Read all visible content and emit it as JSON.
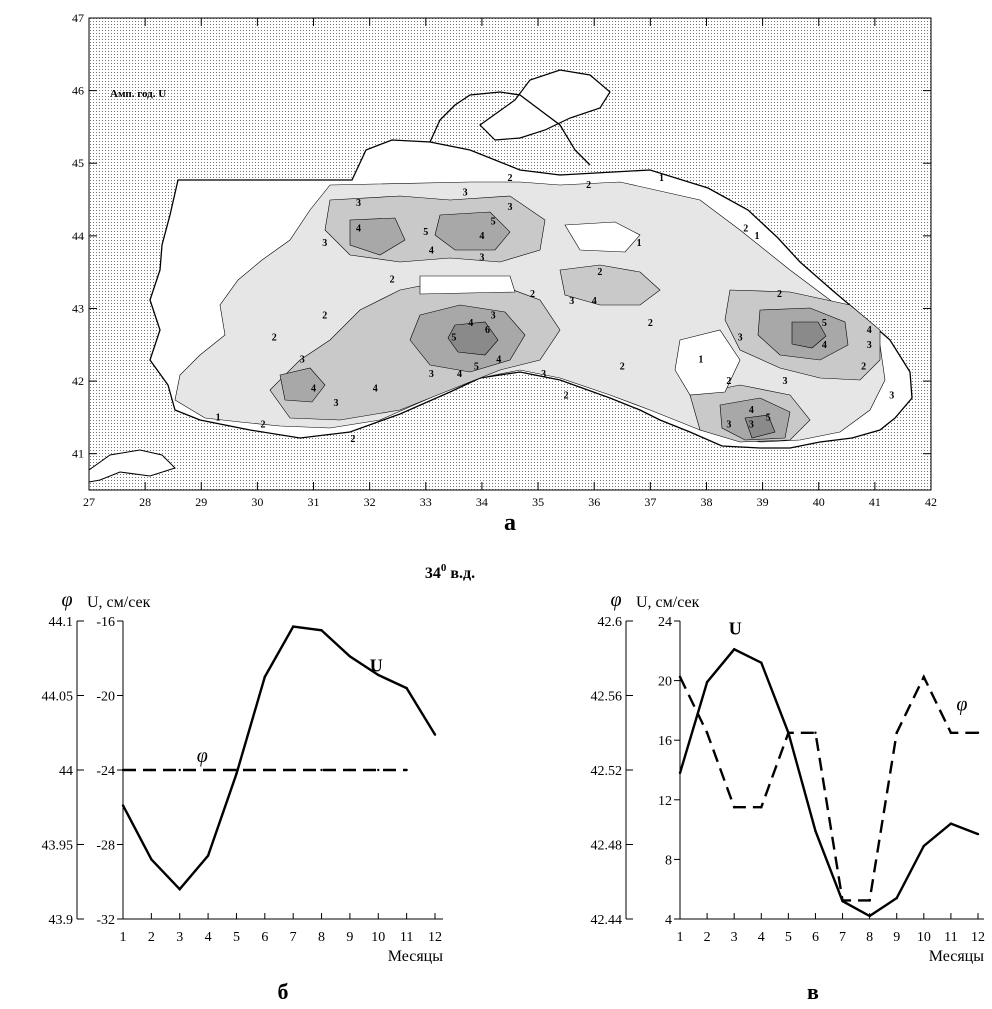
{
  "chart_data": [
    {
      "type": "heatmap",
      "panel_label": "а",
      "map_label": "Амп. год. U",
      "x_ticks": [
        27,
        28,
        29,
        30,
        31,
        32,
        33,
        34,
        35,
        36,
        37,
        38,
        39,
        40,
        41,
        42
      ],
      "y_ticks": [
        41,
        42,
        43,
        44,
        45,
        46,
        47
      ],
      "xlim": [
        27,
        42
      ],
      "ylim": [
        40.5,
        47
      ],
      "contour_labels": [
        {
          "text": "1",
          "lon": 29.3,
          "lat": 41.5
        },
        {
          "text": "2",
          "lon": 30.1,
          "lat": 41.4
        },
        {
          "text": "2",
          "lon": 30.3,
          "lat": 42.6
        },
        {
          "text": "2",
          "lon": 31.2,
          "lat": 42.9
        },
        {
          "text": "3",
          "lon": 30.8,
          "lat": 42.3
        },
        {
          "text": "4",
          "lon": 31.0,
          "lat": 41.9
        },
        {
          "text": "3",
          "lon": 31.4,
          "lat": 41.7
        },
        {
          "text": "4",
          "lon": 32.1,
          "lat": 41.9
        },
        {
          "text": "2",
          "lon": 31.7,
          "lat": 41.2
        },
        {
          "text": "2",
          "lon": 32.4,
          "lat": 43.4
        },
        {
          "text": "4",
          "lon": 31.8,
          "lat": 44.1
        },
        {
          "text": "3",
          "lon": 31.2,
          "lat": 43.9
        },
        {
          "text": "3",
          "lon": 31.8,
          "lat": 44.45
        },
        {
          "text": "5",
          "lon": 33.0,
          "lat": 44.05
        },
        {
          "text": "4",
          "lon": 33.1,
          "lat": 43.8
        },
        {
          "text": "3",
          "lon": 33.7,
          "lat": 44.6
        },
        {
          "text": "4",
          "lon": 34.0,
          "lat": 44.0
        },
        {
          "text": "5",
          "lon": 34.2,
          "lat": 44.2
        },
        {
          "text": "3",
          "lon": 34.5,
          "lat": 44.4
        },
        {
          "text": "2",
          "lon": 34.5,
          "lat": 44.8
        },
        {
          "text": "3",
          "lon": 34.0,
          "lat": 43.7
        },
        {
          "text": "2",
          "lon": 34.9,
          "lat": 43.2
        },
        {
          "text": "3",
          "lon": 34.2,
          "lat": 42.9
        },
        {
          "text": "4",
          "lon": 33.8,
          "lat": 42.8
        },
        {
          "text": "5",
          "lon": 33.5,
          "lat": 42.6
        },
        {
          "text": "6",
          "lon": 34.1,
          "lat": 42.7
        },
        {
          "text": "4",
          "lon": 34.3,
          "lat": 42.3
        },
        {
          "text": "5",
          "lon": 33.9,
          "lat": 42.2
        },
        {
          "text": "4",
          "lon": 33.6,
          "lat": 42.1
        },
        {
          "text": "3",
          "lon": 33.1,
          "lat": 42.1
        },
        {
          "text": "3",
          "lon": 35.1,
          "lat": 42.1
        },
        {
          "text": "2",
          "lon": 35.9,
          "lat": 44.7
        },
        {
          "text": "2",
          "lon": 36.1,
          "lat": 43.5
        },
        {
          "text": "3",
          "lon": 35.6,
          "lat": 43.1
        },
        {
          "text": "4",
          "lon": 36.0,
          "lat": 43.1
        },
        {
          "text": "1",
          "lon": 36.8,
          "lat": 43.9
        },
        {
          "text": "2",
          "lon": 37.0,
          "lat": 42.8
        },
        {
          "text": "1",
          "lon": 37.2,
          "lat": 44.8
        },
        {
          "text": "2",
          "lon": 36.5,
          "lat": 42.2
        },
        {
          "text": "2",
          "lon": 35.5,
          "lat": 41.8
        },
        {
          "text": "1",
          "lon": 37.9,
          "lat": 42.3
        },
        {
          "text": "2",
          "lon": 38.4,
          "lat": 42.0
        },
        {
          "text": "3",
          "lon": 38.6,
          "lat": 42.6
        },
        {
          "text": "4",
          "lon": 40.1,
          "lat": 42.5
        },
        {
          "text": "5",
          "lon": 40.1,
          "lat": 42.8
        },
        {
          "text": "2",
          "lon": 39.3,
          "lat": 43.2
        },
        {
          "text": "1",
          "lon": 38.9,
          "lat": 44.0
        },
        {
          "text": "2",
          "lon": 38.7,
          "lat": 44.1
        },
        {
          "text": "3",
          "lon": 39.4,
          "lat": 42.0
        },
        {
          "text": "3",
          "lon": 38.4,
          "lat": 41.4
        },
        {
          "text": "3",
          "lon": 38.8,
          "lat": 41.4
        },
        {
          "text": "4",
          "lon": 38.8,
          "lat": 41.6
        },
        {
          "text": "5",
          "lon": 39.1,
          "lat": 41.5
        },
        {
          "text": "4",
          "lon": 40.9,
          "lat": 42.7
        },
        {
          "text": "3",
          "lon": 40.9,
          "lat": 42.5
        },
        {
          "text": "2",
          "lon": 40.8,
          "lat": 42.2
        },
        {
          "text": "3",
          "lon": 41.3,
          "lat": 41.8
        }
      ]
    },
    {
      "type": "line",
      "section_title": "34",
      "section_title_sup": "0",
      "section_title_suffix": " в.д.",
      "panel_label": "б",
      "xlabel": "Месяцы",
      "ylabel_left": "φ",
      "ylabel_right": "U, см/сек",
      "x": [
        1,
        2,
        3,
        4,
        5,
        6,
        7,
        8,
        9,
        10,
        11,
        12
      ],
      "ylim_left": [
        43.9,
        44.1
      ],
      "yticks_left": [
        "43.9",
        "43.95",
        "44",
        "44.05",
        "44.1"
      ],
      "ylim_right": [
        -32,
        -16
      ],
      "yticks_right": [
        "-32",
        "-28",
        "-24",
        "-20",
        "-16"
      ],
      "series": [
        {
          "name": "U",
          "axis": "right",
          "style": "solid",
          "values": [
            -25.9,
            -28.8,
            -30.4,
            -28.6,
            -24.2,
            -19.0,
            -16.3,
            -16.5,
            -17.9,
            -18.9,
            -19.6,
            -22.1
          ]
        },
        {
          "name": "φ",
          "axis": "left",
          "style": "dashed",
          "values": [
            44,
            44,
            44,
            44,
            44,
            44,
            44,
            44,
            44,
            44,
            44,
            null
          ]
        }
      ]
    },
    {
      "type": "line",
      "panel_label": "в",
      "xlabel": "Месяцы",
      "ylabel_left": "φ",
      "ylabel_right": "U, см/сек",
      "x": [
        1,
        2,
        3,
        4,
        5,
        6,
        7,
        8,
        9,
        10,
        11,
        12
      ],
      "ylim_left": [
        42.44,
        42.6
      ],
      "yticks_left": [
        "42.44",
        "42.48",
        "42.52",
        "42.56",
        "42.6"
      ],
      "ylim_right": [
        4,
        24
      ],
      "yticks_right": [
        "4",
        "8",
        "12",
        "16",
        "20",
        "24"
      ],
      "series": [
        {
          "name": "U",
          "axis": "right",
          "style": "solid",
          "values": [
            13.8,
            19.9,
            22.1,
            21.2,
            16.5,
            9.9,
            5.2,
            4.2,
            5.4,
            8.9,
            10.4,
            9.7
          ]
        },
        {
          "name": "φ",
          "axis": "left",
          "style": "dashed",
          "values": [
            42.57,
            42.54,
            42.5,
            42.5,
            42.54,
            42.54,
            42.45,
            42.45,
            42.54,
            42.57,
            42.54,
            42.54
          ]
        }
      ]
    }
  ]
}
